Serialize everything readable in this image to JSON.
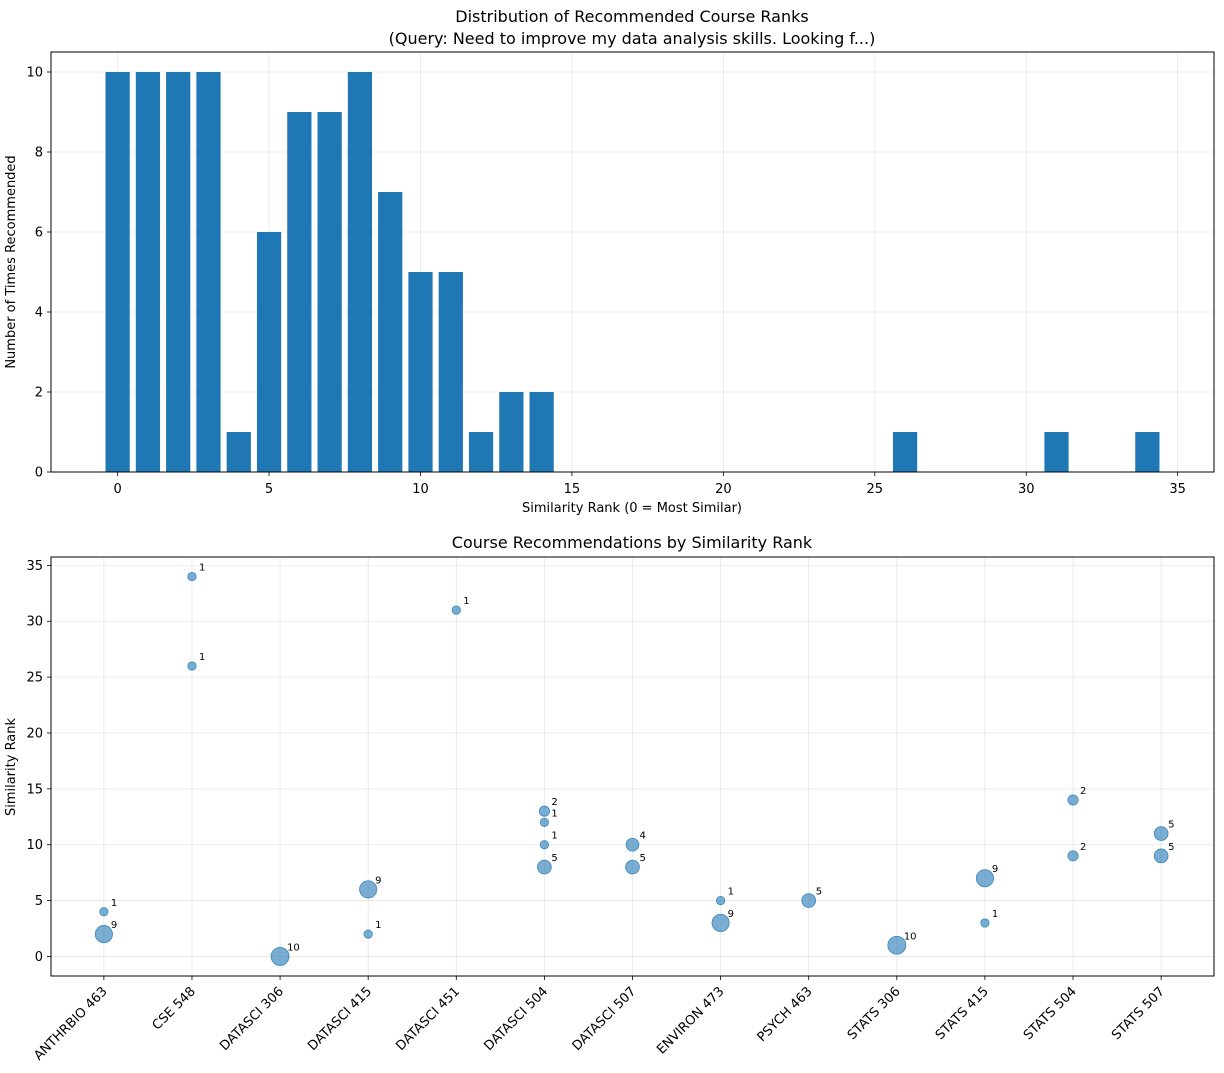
{
  "chart_data": [
    {
      "type": "bar",
      "title": "Distribution of Recommended Course Ranks",
      "subtitle": "(Query: Need to improve my data analysis skills. Looking f...)",
      "xlabel": "Similarity Rank (0 = Most Similar)",
      "ylabel": "Number of Times Recommended",
      "xlim": [
        -2.2,
        36.2
      ],
      "ylim": [
        0,
        10.5
      ],
      "xticks": [
        0,
        5,
        10,
        15,
        20,
        25,
        30,
        35
      ],
      "yticks": [
        0,
        2,
        4,
        6,
        8,
        10
      ],
      "grid": true,
      "bar_color": "#1f77b4",
      "bars": [
        {
          "x": 0,
          "y": 10
        },
        {
          "x": 1,
          "y": 10
        },
        {
          "x": 2,
          "y": 10
        },
        {
          "x": 3,
          "y": 10
        },
        {
          "x": 4,
          "y": 1
        },
        {
          "x": 5,
          "y": 6
        },
        {
          "x": 6,
          "y": 9
        },
        {
          "x": 7,
          "y": 9
        },
        {
          "x": 8,
          "y": 10
        },
        {
          "x": 9,
          "y": 7
        },
        {
          "x": 10,
          "y": 5
        },
        {
          "x": 11,
          "y": 5
        },
        {
          "x": 12,
          "y": 1
        },
        {
          "x": 13,
          "y": 2
        },
        {
          "x": 14,
          "y": 2
        },
        {
          "x": 26,
          "y": 1
        },
        {
          "x": 31,
          "y": 1
        },
        {
          "x": 34,
          "y": 1
        }
      ]
    },
    {
      "type": "scatter",
      "title": "Course Recommendations by Similarity Rank",
      "xlabel": "",
      "ylabel": "Similarity Rank",
      "ylim": [
        -1.75,
        35.75
      ],
      "yticks": [
        0,
        5,
        10,
        15,
        20,
        25,
        30,
        35
      ],
      "grid": true,
      "marker_color": "#1f77b4",
      "categories": [
        "ANTHRBIO 463",
        "CSE 548",
        "DATASCI 306",
        "DATASCI 415",
        "DATASCI 451",
        "DATASCI 504",
        "DATASCI 507",
        "ENVIRON 473",
        "PSYCH 463",
        "STATS 306",
        "STATS 415",
        "STATS 504",
        "STATS 507"
      ],
      "points": [
        {
          "course": "ANTHRBIO 463",
          "rank": 4,
          "count": 1
        },
        {
          "course": "ANTHRBIO 463",
          "rank": 2,
          "count": 9
        },
        {
          "course": "CSE 548",
          "rank": 34,
          "count": 1
        },
        {
          "course": "CSE 548",
          "rank": 26,
          "count": 1
        },
        {
          "course": "DATASCI 306",
          "rank": 0,
          "count": 10
        },
        {
          "course": "DATASCI 415",
          "rank": 6,
          "count": 9
        },
        {
          "course": "DATASCI 415",
          "rank": 2,
          "count": 1
        },
        {
          "course": "DATASCI 451",
          "rank": 31,
          "count": 1
        },
        {
          "course": "DATASCI 504",
          "rank": 13,
          "count": 2
        },
        {
          "course": "DATASCI 504",
          "rank": 12,
          "count": 1
        },
        {
          "course": "DATASCI 504",
          "rank": 10,
          "count": 1
        },
        {
          "course": "DATASCI 504",
          "rank": 8,
          "count": 5
        },
        {
          "course": "DATASCI 507",
          "rank": 10,
          "count": 4
        },
        {
          "course": "DATASCI 507",
          "rank": 8,
          "count": 5
        },
        {
          "course": "ENVIRON 473",
          "rank": 5,
          "count": 1
        },
        {
          "course": "ENVIRON 473",
          "rank": 3,
          "count": 9
        },
        {
          "course": "PSYCH 463",
          "rank": 5,
          "count": 5
        },
        {
          "course": "STATS 306",
          "rank": 1,
          "count": 10
        },
        {
          "course": "STATS 415",
          "rank": 7,
          "count": 9
        },
        {
          "course": "STATS 415",
          "rank": 3,
          "count": 1
        },
        {
          "course": "STATS 504",
          "rank": 14,
          "count": 2
        },
        {
          "course": "STATS 504",
          "rank": 9,
          "count": 2
        },
        {
          "course": "STATS 507",
          "rank": 11,
          "count": 5
        },
        {
          "course": "STATS 507",
          "rank": 9,
          "count": 5
        }
      ]
    }
  ]
}
